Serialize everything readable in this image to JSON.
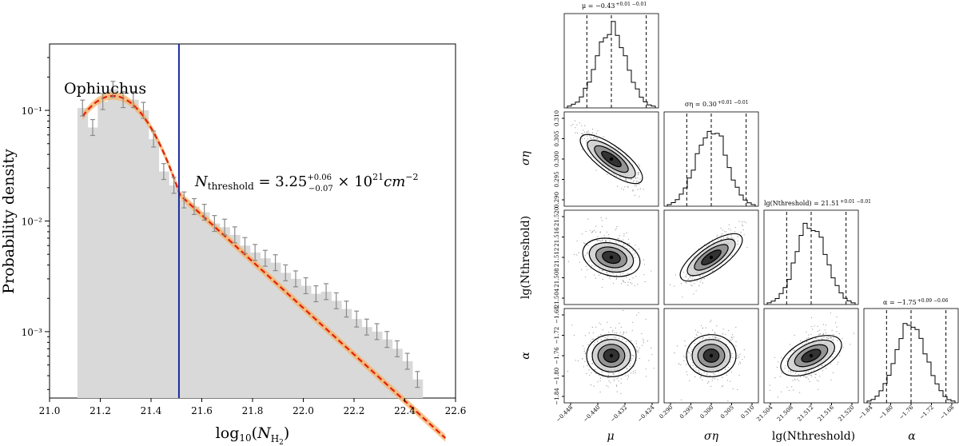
{
  "chart_data": [
    {
      "type": "bar",
      "title": "Ophiuchus",
      "xlabel": "log10(N_H2)",
      "ylabel": "Probability density",
      "xlim": [
        21.0,
        22.6
      ],
      "ylim_log10": [
        -3.6,
        -0.4
      ],
      "yscale": "log",
      "x_ticks": [
        "21.0",
        "21.2",
        "21.4",
        "21.6",
        "21.8",
        "22.0",
        "22.2",
        "22.4",
        "22.6"
      ],
      "y_ticks": [
        "10⁻¹",
        "10⁻²",
        "10⁻³"
      ],
      "threshold_x": 21.51,
      "threshold_label": "N_threshold = 3.25 (+0.06 / -0.07) × 10^21 cm^-2",
      "bins_x": [
        21.13,
        21.17,
        21.21,
        21.25,
        21.29,
        21.33,
        21.37,
        21.41,
        21.45,
        21.49,
        21.53,
        21.57,
        21.61,
        21.65,
        21.69,
        21.73,
        21.77,
        21.81,
        21.85,
        21.89,
        21.93,
        21.97,
        22.01,
        22.05,
        22.09,
        22.13,
        22.17,
        22.21,
        22.25,
        22.29,
        22.33,
        22.37,
        22.41,
        22.45
      ],
      "values": [
        0.105,
        0.07,
        0.12,
        0.155,
        0.125,
        0.125,
        0.1,
        0.055,
        0.028,
        0.021,
        0.0155,
        0.0135,
        0.012,
        0.0095,
        0.0088,
        0.0075,
        0.006,
        0.0052,
        0.0046,
        0.0042,
        0.0034,
        0.003,
        0.0026,
        0.0022,
        0.0023,
        0.0019,
        0.0016,
        0.0013,
        0.0011,
        0.001,
        0.00085,
        0.0007,
        0.00054,
        0.00037
      ],
      "fit_series": "lognormal + power-law fit (red dashed)"
    },
    {
      "type": "corner",
      "params": [
        "μ",
        "ση",
        "lg(N_threshold)",
        "α"
      ],
      "param_labels": [
        "μ",
        "ση",
        "lg(Nthreshold)",
        "α"
      ],
      "titles": [
        "μ = −0.43 +0.01 −0.01",
        "ση = 0.30 +0.01 −0.01",
        "lg(Nthreshold) = 21.51 +0.01 −0.01",
        "α = −1.75 +0.09 −0.06"
      ],
      "medians": [
        -0.43,
        0.3,
        21.51,
        -1.75
      ],
      "ticks": [
        [
          "−0.448",
          "−0.440",
          "−0.432",
          "−0.424"
        ],
        [
          "0.290",
          "0.295",
          "0.300",
          "0.305",
          "0.310"
        ],
        [
          "21.504",
          "21.508",
          "21.512",
          "21.516",
          "21.520"
        ],
        [
          "−1.84",
          "−1.80",
          "−1.76",
          "−1.72",
          "−1.68"
        ]
      ]
    }
  ],
  "labels": {
    "ophiuchus": "Ophiuchus",
    "ylabel": "Probability density",
    "xlabel_prefix": "log",
    "xlabel_sub": "10",
    "nthresh_main": "N",
    "nthresh_sub": "threshold",
    "nthresh_eq": " = 3.25",
    "nthresh_up": "+0.06",
    "nthresh_dn": "−0.07",
    "nthresh_tail": " × 10",
    "nthresh_exp": "21",
    "nthresh_unit": "cm",
    "nthresh_uexp": "−2",
    "corner_title_mu": "μ = −0.43",
    "corner_title_mu_pm": "+0.01 −0.01",
    "corner_title_sigma": "ση = 0.30",
    "corner_title_sigma_pm": "+0.01 −0.01",
    "corner_title_lg": "lg(Nthreshold) = 21.51",
    "corner_title_lg_pm": "+0.01 −0.01",
    "corner_title_alpha": "α = −1.75",
    "corner_title_alpha_pm": "+0.09 −0.06",
    "axis_mu": "μ",
    "axis_sigma": "ση",
    "axis_lg": "lg(Nthreshold)",
    "axis_alpha": "α"
  },
  "colors": {
    "bar": "#d9d9d9",
    "fit": "#e02010",
    "fit_band": "#f6b060",
    "threshold": "#1a2aa0",
    "errbar": "#8a8a8a"
  }
}
